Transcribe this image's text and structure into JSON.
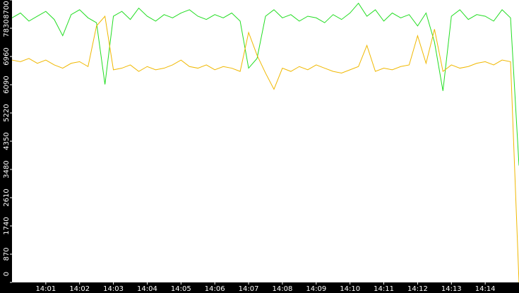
{
  "chart_data": {
    "type": "line",
    "x": [
      0,
      0.25,
      0.5,
      0.75,
      1,
      1.25,
      1.5,
      1.75,
      2,
      2.25,
      2.5,
      2.75,
      3,
      3.25,
      3.5,
      3.75,
      4,
      4.25,
      4.5,
      4.75,
      5,
      5.25,
      5.5,
      5.75,
      6,
      6.25,
      6.5,
      6.75,
      7,
      7.25,
      7.5,
      7.75,
      8,
      8.25,
      8.5,
      8.75,
      9,
      9.25,
      9.5,
      9.75,
      10,
      10.25,
      10.5,
      10.75,
      11,
      11.25,
      11.5,
      11.75,
      12,
      12.25,
      12.5,
      12.75,
      13,
      13.25,
      13.5,
      13.75,
      14,
      14.25,
      14.5,
      14.75,
      15
    ],
    "series": [
      {
        "color": "#22dd22",
        "values": [
          8150,
          8300,
          8050,
          8200,
          8350,
          8100,
          7600,
          8250,
          8400,
          8150,
          8000,
          6100,
          8200,
          8350,
          8100,
          8450,
          8200,
          8050,
          8250,
          8150,
          8300,
          8400,
          8200,
          8100,
          8250,
          8150,
          8300,
          8050,
          6600,
          6900,
          8200,
          8400,
          8150,
          8250,
          8050,
          8200,
          8150,
          8000,
          8250,
          8100,
          8300,
          8600,
          8200,
          8400,
          8050,
          8300,
          8150,
          8250,
          7900,
          8300,
          7400,
          5900,
          8200,
          8400,
          8100,
          8250,
          8200,
          8050,
          8400,
          8150,
          3600
        ]
      },
      {
        "color": "#f0b800",
        "values": [
          6850,
          6800,
          6900,
          6750,
          6850,
          6700,
          6600,
          6750,
          6800,
          6650,
          7900,
          8200,
          6550,
          6600,
          6700,
          6500,
          6650,
          6550,
          6600,
          6700,
          6850,
          6650,
          6600,
          6700,
          6550,
          6650,
          6600,
          6500,
          7700,
          7000,
          6450,
          5950,
          6600,
          6500,
          6650,
          6550,
          6700,
          6600,
          6500,
          6450,
          6550,
          6650,
          7300,
          6500,
          6600,
          6550,
          6650,
          6700,
          7600,
          6750,
          7800,
          6500,
          6700,
          6600,
          6650,
          6750,
          6800,
          6700,
          6850,
          6800,
          0
        ]
      }
    ],
    "xlim": [
      0,
      15
    ],
    "xticks": [
      {
        "value": 1,
        "label": "14:01"
      },
      {
        "value": 2,
        "label": "14:02"
      },
      {
        "value": 3,
        "label": "14:03"
      },
      {
        "value": 4,
        "label": "14:04"
      },
      {
        "value": 5,
        "label": "14:05"
      },
      {
        "value": 6,
        "label": "14:06"
      },
      {
        "value": 7,
        "label": "14:07"
      },
      {
        "value": 8,
        "label": "14:08"
      },
      {
        "value": 9,
        "label": "14:09"
      },
      {
        "value": 10,
        "label": "14:10"
      },
      {
        "value": 11,
        "label": "14:11"
      },
      {
        "value": 12,
        "label": "14:12"
      },
      {
        "value": 13,
        "label": "14:13"
      },
      {
        "value": 14,
        "label": "14:14"
      }
    ],
    "ylim": [
      0,
      8700
    ],
    "yticks": [
      0,
      870,
      1740,
      2610,
      3480,
      4350,
      5220,
      6090,
      6960,
      7830,
      8700
    ]
  }
}
